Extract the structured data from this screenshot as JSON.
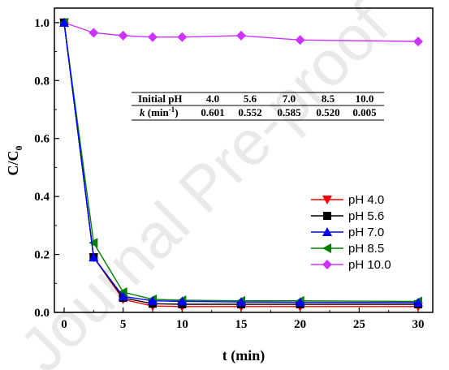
{
  "watermark": "Journal Pre-proof",
  "chart_data": {
    "type": "line",
    "xlabel": "t (min)",
    "ylabel_main": "C/C",
    "ylabel_sub": "0",
    "xlim": [
      0,
      30
    ],
    "ylim": [
      0,
      1.05
    ],
    "xticks": [
      "0",
      "5",
      "10",
      "15",
      "20",
      "25",
      "30"
    ],
    "yticks": [
      "0.0",
      "0.2",
      "0.4",
      "0.6",
      "0.8",
      "1.0"
    ],
    "xtick_values": [
      0,
      5,
      10,
      15,
      20,
      25,
      30
    ],
    "ytick_values": [
      0,
      0.2,
      0.4,
      0.6,
      0.8,
      1.0
    ],
    "legend_position": "right-middle",
    "x": [
      0,
      2.5,
      5,
      7.5,
      10,
      15,
      20,
      30
    ],
    "series": [
      {
        "name": "pH 4.0",
        "color": "#ff0000",
        "marker": "triangle-down",
        "values": [
          1.0,
          0.19,
          0.045,
          0.022,
          0.02,
          0.02,
          0.02,
          0.02
        ]
      },
      {
        "name": "pH 5.6",
        "color": "#000000",
        "marker": "square",
        "values": [
          1.0,
          0.19,
          0.05,
          0.03,
          0.028,
          0.028,
          0.028,
          0.028
        ]
      },
      {
        "name": "pH 7.0",
        "color": "#0000ff",
        "marker": "triangle-up",
        "values": [
          1.0,
          0.19,
          0.055,
          0.04,
          0.038,
          0.036,
          0.035,
          0.034
        ]
      },
      {
        "name": "pH 8.5",
        "color": "#008000",
        "marker": "triangle-left",
        "values": [
          1.0,
          0.24,
          0.07,
          0.045,
          0.042,
          0.04,
          0.04,
          0.038
        ]
      },
      {
        "name": "pH 10.0",
        "color": "#cc33ff",
        "marker": "diamond",
        "values": [
          1.0,
          0.965,
          0.955,
          0.95,
          0.95,
          0.955,
          0.94,
          0.935
        ]
      }
    ],
    "table": {
      "header": [
        "Initial pH",
        "4.0",
        "5.6",
        "7.0",
        "8.5",
        "10.0"
      ],
      "row_label": "k",
      "row_label_unit": "(min",
      "row_label_exp": "-1",
      "row_label_close": ")",
      "row": [
        "0.601",
        "0.552",
        "0.585",
        "0.520",
        "0.005"
      ]
    }
  }
}
